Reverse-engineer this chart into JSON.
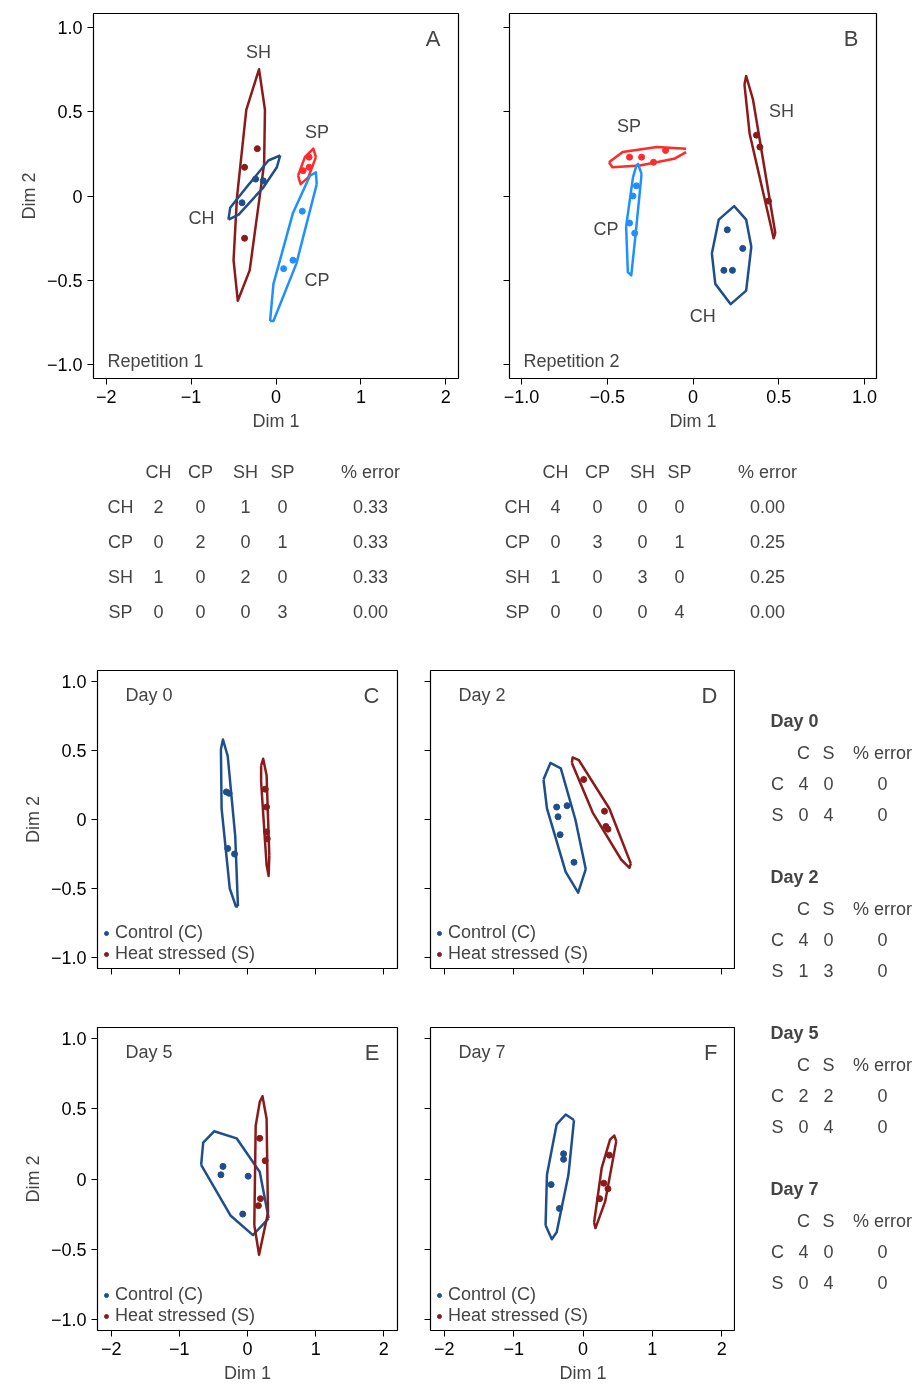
{
  "chart_data": [
    {
      "type": "scatter",
      "xlabel": "Dim 1",
      "ylabel": "Dim 2",
      "xlim": [
        -2.15,
        2.15
      ],
      "ylim": [
        -1.08,
        1.08
      ],
      "xticks": [
        {
          "value": -2,
          "label": "−2"
        },
        {
          "value": -1,
          "label": "−1"
        },
        0,
        1,
        2
      ],
      "yticks": [
        {
          "value": -1,
          "label": "−1.0"
        },
        {
          "value": -0.5,
          "label": "−0.5"
        },
        0,
        0.5,
        {
          "value": 1,
          "label": "1.0"
        }
      ],
      "annotations": [
        "A",
        "Repetition 1"
      ],
      "series": [
        {
          "type": "line",
          "name": "SH",
          "color": "#8b1a1a",
          "x": [
            -0.5,
            -0.46,
            -0.35,
            -0.2,
            -0.13,
            null,
            -0.5,
            -0.45,
            -0.31,
            -0.14,
            -0.13
          ],
          "values": [
            -0.38,
            -0.01,
            0.51,
            0.75,
            0.51,
            null,
            -0.38,
            -0.62,
            -0.44,
            0.19,
            0.51
          ]
        },
        {
          "type": "line",
          "name": "CH",
          "color": "#1f4e8c",
          "x": [
            -0.56,
            -0.54,
            -0.35,
            -0.09,
            0.05,
            null,
            -0.56,
            -0.44,
            -0.15,
            0.01,
            0.05
          ],
          "values": [
            -0.14,
            -0.07,
            0.05,
            0.21,
            0.24,
            null,
            -0.14,
            -0.11,
            0.05,
            0.17,
            0.24
          ]
        },
        {
          "type": "line",
          "name": "SP",
          "color": "#ff2a2a",
          "x": [
            0.26,
            0.34,
            0.44,
            0.47,
            null,
            0.26,
            0.29,
            0.38,
            0.47
          ],
          "values": [
            0.12,
            0.23,
            0.28,
            0.23,
            null,
            0.12,
            0.07,
            0.11,
            0.23
          ]
        },
        {
          "type": "line",
          "name": "CP",
          "color": "#1e90ff",
          "x": [
            -0.07,
            -0.03,
            0.2,
            0.4,
            0.47,
            0.48,
            null,
            -0.07,
            -0.03,
            0.24,
            0.48
          ],
          "values": [
            -0.74,
            -0.52,
            -0.1,
            0.12,
            0.14,
            0.07,
            null,
            -0.74,
            -0.74,
            -0.4,
            0.07
          ]
        },
        {
          "type": "scatter",
          "color": "#8b1a1a",
          "x": [
            -0.22,
            -0.37,
            -0.37
          ],
          "values": [
            0.28,
            0.17,
            -0.25
          ]
        },
        {
          "type": "scatter",
          "color": "#1f4e8c",
          "x": [
            -0.24,
            -0.15,
            -0.4
          ],
          "values": [
            0.1,
            0.09,
            -0.04
          ]
        },
        {
          "type": "scatter",
          "color": "#ff2a2a",
          "x": [
            0.39,
            0.39,
            0.32
          ],
          "values": [
            0.23,
            0.17,
            0.15
          ]
        },
        {
          "type": "scatter",
          "color": "#1e90ff",
          "x": [
            0.31,
            0.2,
            0.09
          ],
          "values": [
            -0.09,
            -0.38,
            -0.43
          ]
        }
      ]
    },
    {
      "type": "scatter",
      "xlabel": "Dim 1",
      "xlim": [
        -1.07,
        1.07
      ],
      "ylim": [
        -1.08,
        1.08
      ],
      "tick_labels": "x",
      "xticks": [
        {
          "value": -1,
          "label": "−1.0"
        },
        {
          "value": -0.5,
          "label": "−0.5"
        },
        0,
        0.5,
        {
          "value": 1,
          "label": "1.0"
        }
      ],
      "yticks": [
        {
          "value": -1,
          "label": null
        },
        {
          "value": -0.5,
          "label": null
        },
        {
          "value": 0,
          "label": null
        },
        {
          "value": 0.5,
          "label": null
        },
        {
          "value": 1,
          "label": null
        }
      ],
      "annotations": [
        "B",
        "Repetition 2"
      ],
      "series": [
        {
          "type": "line",
          "name": "SP",
          "color": "#ff2a2a",
          "x": [
            -0.49,
            -0.41,
            -0.21,
            -0.04,
            null,
            -0.49,
            -0.47,
            -0.31,
            -0.11,
            -0.04
          ],
          "values": [
            0.2,
            0.26,
            0.29,
            0.28,
            null,
            0.2,
            0.17,
            0.18,
            0.22,
            0.26
          ]
        },
        {
          "type": "line",
          "name": "CP",
          "color": "#1e90ff",
          "x": [
            -0.39,
            -0.35,
            -0.33,
            -0.32,
            -0.3,
            null,
            -0.39,
            -0.38,
            -0.36,
            -0.33,
            -0.3
          ],
          "values": [
            -0.18,
            0.11,
            0.18,
            0.19,
            0.13,
            null,
            -0.18,
            -0.45,
            -0.47,
            -0.18,
            0.13
          ]
        },
        {
          "type": "line",
          "name": "SH",
          "color": "#8b1a1a",
          "x": [
            0.3,
            0.31,
            0.35,
            0.48,
            null,
            0.3,
            0.33,
            0.45,
            0.47,
            0.48
          ],
          "values": [
            0.66,
            0.71,
            0.57,
            -0.22,
            null,
            0.66,
            0.37,
            -0.16,
            -0.25,
            -0.22
          ]
        },
        {
          "type": "line",
          "name": "CH",
          "color": "#1f4e8c",
          "x": [
            0.11,
            0.15,
            0.24,
            0.31,
            0.34,
            null,
            0.11,
            0.13,
            0.22,
            0.31,
            0.34
          ],
          "values": [
            -0.34,
            -0.14,
            -0.06,
            -0.14,
            -0.3,
            null,
            -0.34,
            -0.52,
            -0.64,
            -0.56,
            -0.3
          ]
        },
        {
          "type": "scatter",
          "color": "#ff2a2a",
          "x": [
            -0.37,
            -0.3,
            -0.23,
            -0.16
          ],
          "values": [
            0.23,
            0.23,
            0.2,
            0.27
          ]
        },
        {
          "type": "scatter",
          "color": "#1e90ff",
          "x": [
            -0.33,
            -0.37,
            -0.35,
            -0.34
          ],
          "values": [
            0.06,
            -0.16,
            null,
            -0.22
          ]
        },
        {
          "type": "scatter",
          "color": "#8b1a1a",
          "x": [
            0.37,
            0.39,
            0.44
          ],
          "values": [
            0.36,
            0.29,
            -0.03
          ]
        },
        {
          "type": "scatter",
          "color": "#1f4e8c",
          "x": [
            0.2,
            0.29,
            0.18,
            0.23
          ],
          "values": [
            -0.2,
            -0.31,
            -0.44,
            -0.44
          ]
        }
      ]
    },
    {
      "type": "other",
      "annotations": [
        "CH\tCP\tSH\tSP\t% error",
        "CH\t2\t0\t1\t0\t0.33",
        "CP\t0\t2\t0\t1\t0.33",
        "SH\t1\t0\t2\t0\t0.33",
        "SP\t0\t0\t0\t3\t0.00"
      ]
    },
    {
      "type": "other",
      "annotations": [
        "CH\tCP\tSH\tSP\t% error",
        "CH\t4\t0\t0\t0\t0.00",
        "CP\t0\t3\t0\t1\t0.25",
        "SH\t1\t0\t3\t0\t0.25",
        "SP\t0\t0\t0\t4\t0.00"
      ]
    },
    {
      "type": "scatter",
      "ylabel": "Dim 2",
      "xlim": [
        -2.2,
        2.2
      ],
      "ylim": [
        -1.08,
        1.08
      ],
      "tick_labels": "y",
      "legend": "bottom left",
      "xticks": [
        {
          "value": -2,
          "label": null
        },
        {
          "value": -1,
          "label": null
        },
        {
          "value": 0,
          "label": null
        },
        {
          "value": 1,
          "label": null
        },
        {
          "value": 2,
          "label": null
        }
      ],
      "yticks": [
        {
          "value": -1,
          "label": "−1.0"
        },
        {
          "value": -0.5,
          "label": "−0.5"
        },
        0,
        0.5,
        {
          "value": 1,
          "label": "1.0"
        }
      ],
      "annotations": [
        "C",
        "Day 0"
      ],
      "series": [
        {
          "type": "line",
          "color": "#1f4e8c",
          "x": [
            -0.39,
            -0.36,
            -0.29,
            -0.18,
            -0.14,
            null,
            -0.39,
            -0.38,
            -0.26,
            -0.17,
            -0.14
          ],
          "values": [
            0.51,
            0.58,
            0.46,
            -0.12,
            -0.63,
            null,
            0.51,
            0.08,
            -0.5,
            -0.63,
            -0.63
          ]
        },
        {
          "type": "line",
          "color": "#8b1a1a",
          "x": [
            0.2,
            0.23,
            0.28,
            0.32,
            null,
            0.2,
            0.2,
            0.28,
            0.31,
            0.32
          ],
          "values": [
            0.39,
            0.44,
            0.32,
            -0.26,
            null,
            0.39,
            0.27,
            -0.33,
            -0.41,
            -0.26
          ]
        },
        {
          "type": "scatter",
          "name": "Control (C)",
          "color": "#1f4e8c",
          "x": [
            -0.31,
            -0.27,
            -0.29,
            -0.19
          ],
          "values": [
            0.2,
            0.19,
            -0.21,
            -0.25
          ]
        },
        {
          "type": "scatter",
          "name": "Heat stressed (S)",
          "color": "#8b1a1a",
          "x": [
            0.26,
            0.28,
            0.28,
            0.29
          ],
          "values": [
            0.22,
            0.09,
            -0.09,
            -0.14
          ]
        }
      ]
    },
    {
      "type": "scatter",
      "xlim": [
        -2.2,
        2.2
      ],
      "ylim": [
        -1.08,
        1.08
      ],
      "tick_labels": false,
      "legend": "bottom left",
      "xticks": [
        {
          "value": -2,
          "label": null
        },
        {
          "value": -1,
          "label": null
        },
        {
          "value": 0,
          "label": null
        },
        {
          "value": 1,
          "label": null
        },
        {
          "value": 2,
          "label": null
        }
      ],
      "yticks": [
        {
          "value": -1,
          "label": null
        },
        {
          "value": -0.5,
          "label": null
        },
        {
          "value": 0,
          "label": null
        },
        {
          "value": 0.5,
          "label": null
        },
        {
          "value": 1,
          "label": null
        }
      ],
      "annotations": [
        "D",
        "Day 2"
      ],
      "series": [
        {
          "type": "line",
          "color": "#1f4e8c",
          "x": [
            -0.57,
            -0.47,
            -0.32,
            -0.11,
            0.04,
            null,
            -0.57,
            -0.52,
            -0.25,
            -0.07,
            0.04
          ],
          "values": [
            0.29,
            0.41,
            0.37,
            0.0,
            -0.36,
            null,
            0.29,
            0.08,
            -0.38,
            -0.53,
            -0.36
          ]
        },
        {
          "type": "line",
          "color": "#8b1a1a",
          "x": [
            -0.16,
            -0.15,
            -0.06,
            0.38,
            0.69,
            null,
            -0.16,
            0.14,
            0.55,
            0.67,
            0.69
          ],
          "values": [
            0.41,
            0.45,
            0.43,
            0.08,
            -0.32,
            null,
            0.41,
            0.05,
            -0.29,
            -0.35,
            -0.32
          ]
        },
        {
          "type": "scatter",
          "name": "Control (C)",
          "color": "#1f4e8c",
          "x": [
            -0.38,
            -0.23,
            -0.36,
            -0.33,
            -0.13
          ],
          "values": [
            0.09,
            0.1,
            0.02,
            -0.11,
            -0.31
          ]
        },
        {
          "type": "scatter",
          "name": "Heat stressed (S)",
          "color": "#8b1a1a",
          "x": [
            0.01,
            0.31,
            0.33,
            0.36
          ],
          "values": [
            0.29,
            0.06,
            -0.05,
            -0.07
          ]
        }
      ]
    },
    {
      "type": "scatter",
      "xlabel": "Dim 1",
      "ylabel": "Dim 2",
      "xlim": [
        -2.2,
        2.2
      ],
      "ylim": [
        -1.08,
        1.08
      ],
      "legend": "bottom left",
      "xticks": [
        {
          "value": -2,
          "label": "−2"
        },
        {
          "value": -1,
          "label": "−1"
        },
        0,
        1,
        2
      ],
      "yticks": [
        {
          "value": -1,
          "label": "−1.0"
        },
        {
          "value": -0.5,
          "label": "−0.5"
        },
        0,
        0.5,
        {
          "value": 1,
          "label": "1.0"
        }
      ],
      "annotations": [
        "E",
        "Day 5"
      ],
      "series": [
        {
          "type": "line",
          "color": "#1f4e8c",
          "x": [
            -0.68,
            -0.65,
            -0.49,
            -0.16,
            0.18,
            0.31,
            null,
            -0.68,
            -0.25,
            0.08,
            0.31
          ],
          "values": [
            0.1,
            0.26,
            0.34,
            0.29,
            0.05,
            -0.28,
            null,
            0.1,
            -0.26,
            -0.4,
            -0.28
          ]
        },
        {
          "type": "line",
          "color": "#8b1a1a",
          "x": [
            0.1,
            0.12,
            0.18,
            0.22,
            0.28,
            0.3,
            null,
            0.1,
            0.17,
            0.3
          ],
          "values": [
            -0.33,
            0.38,
            0.55,
            0.59,
            0.43,
            -0.24,
            null,
            -0.33,
            -0.54,
            -0.24
          ]
        },
        {
          "type": "scatter",
          "name": "Control (C)",
          "color": "#1f4e8c",
          "x": [
            -0.36,
            -0.39,
            0.01,
            -0.07
          ],
          "values": [
            0.09,
            0.03,
            0.02,
            -0.25
          ]
        },
        {
          "type": "scatter",
          "name": "Heat stressed (S)",
          "color": "#8b1a1a",
          "x": [
            0.18,
            0.26,
            0.19,
            0.16
          ],
          "values": [
            0.29,
            0.13,
            -0.14,
            -0.19
          ]
        }
      ]
    },
    {
      "type": "scatter",
      "xlabel": "Dim 1",
      "xlim": [
        -2.2,
        2.2
      ],
      "ylim": [
        -1.08,
        1.08
      ],
      "tick_labels": "x",
      "legend": "bottom left",
      "xticks": [
        {
          "value": -2,
          "label": "−2"
        },
        {
          "value": -1,
          "label": "−1"
        },
        0,
        1,
        2
      ],
      "yticks": [
        {
          "value": -1,
          "label": null
        },
        {
          "value": -0.5,
          "label": null
        },
        {
          "value": 0,
          "label": null
        },
        {
          "value": 0.5,
          "label": null
        },
        {
          "value": 1,
          "label": null
        }
      ],
      "annotations": [
        "F",
        "Day 7"
      ],
      "series": [
        {
          "type": "line",
          "color": "#1f4e8c",
          "x": [
            -0.54,
            -0.52,
            -0.38,
            -0.25,
            -0.13,
            null,
            -0.54,
            -0.45,
            -0.38,
            -0.21,
            -0.13
          ],
          "values": [
            -0.33,
            0.03,
            0.39,
            0.46,
            0.42,
            null,
            -0.33,
            -0.43,
            -0.38,
            0.03,
            0.42
          ]
        },
        {
          "type": "line",
          "color": "#8b1a1a",
          "x": [
            0.16,
            0.27,
            0.39,
            0.45,
            0.48,
            null,
            0.16,
            0.18,
            0.32,
            0.48
          ],
          "values": [
            -0.31,
            0.08,
            0.28,
            0.31,
            0.27,
            null,
            -0.31,
            -0.35,
            -0.16,
            0.27
          ]
        },
        {
          "type": "scatter",
          "name": "Control (C)",
          "color": "#1f4e8c",
          "x": [
            -0.28,
            -0.28,
            -0.46,
            -0.34
          ],
          "values": [
            0.18,
            0.14,
            -0.04,
            -0.21
          ]
        },
        {
          "type": "scatter",
          "name": "Heat stressed (S)",
          "color": "#8b1a1a",
          "x": [
            0.38,
            0.3,
            0.36,
            0.24
          ],
          "values": [
            0.17,
            -0.03,
            -0.07,
            -0.14
          ]
        }
      ]
    },
    {
      "type": "other",
      "title": "Day 0",
      "annotations": [
        "C\tS\t% error",
        "C\t4\t0\t0",
        "S\t0\t4\t0"
      ]
    },
    {
      "type": "other",
      "title": "Day 2",
      "annotations": [
        "C\tS\t% error",
        "C\t4\t0\t0",
        "S\t1\t3\t0"
      ]
    },
    {
      "type": "other",
      "title": "Day 5",
      "annotations": [
        "C\tS\t% error",
        "C\t2\t2\t0",
        "S\t0\t4\t0"
      ]
    },
    {
      "type": "other",
      "title": "Day 7",
      "annotations": [
        "C\tS\t% error",
        "C\t4\t0\t0",
        "S\t0\t4\t0"
      ]
    }
  ]
}
